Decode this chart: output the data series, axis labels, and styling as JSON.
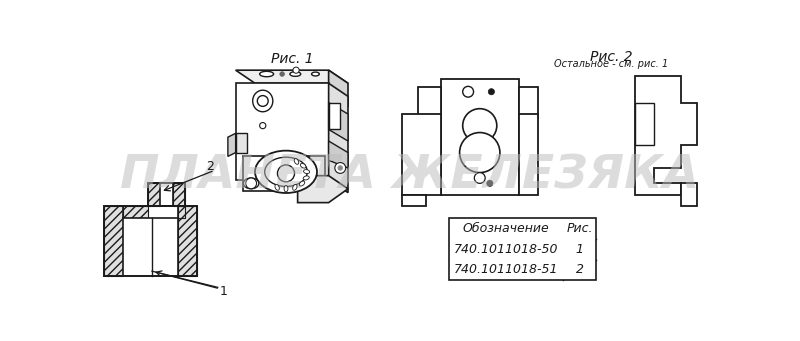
{
  "bg_color": "#ffffff",
  "title_ris1": "Рис. 1",
  "title_ris2": "Рис. 2",
  "subtitle_ris2": "Остальное - см. рис. 1",
  "table_header": [
    "Обозначение",
    "Рис."
  ],
  "table_rows": [
    [
      "740.1011018-50",
      "1"
    ],
    [
      "740.1011018-51",
      "2"
    ]
  ],
  "watermark": "ПЛАНЕТА ЖЕЛЕЗЯКА",
  "label1": "1",
  "label2": "2",
  "line_color": "#1a1a1a",
  "hatch_color": "#444444",
  "gray_light": "#d8d8d8"
}
